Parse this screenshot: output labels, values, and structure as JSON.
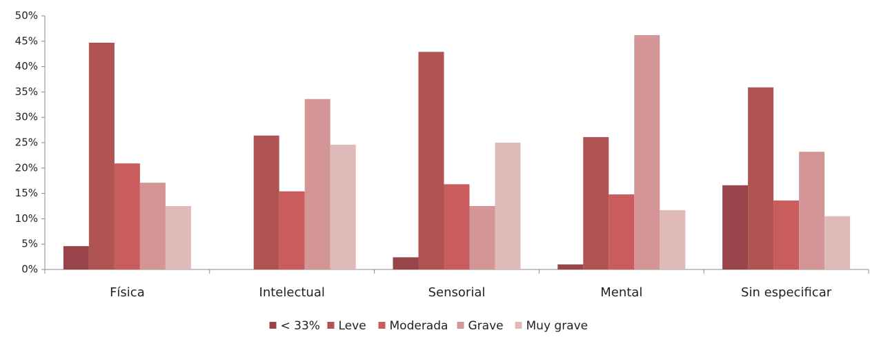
{
  "chart_data": {
    "type": "bar",
    "categories": [
      "Física",
      "Intelectual",
      "Sensorial",
      "Mental",
      "Sin especificar"
    ],
    "series": [
      {
        "name": "< 33%",
        "color": "#97444a",
        "values": [
          4.6,
          0,
          2.4,
          1.0,
          16.6
        ]
      },
      {
        "name": "Leve",
        "color": "#b05353",
        "values": [
          44.7,
          26.4,
          42.9,
          26.1,
          35.9
        ]
      },
      {
        "name": "Moderada",
        "color": "#c95c5c",
        "values": [
          20.9,
          15.4,
          16.8,
          14.8,
          13.6
        ]
      },
      {
        "name": "Grave",
        "color": "#d39596",
        "values": [
          17.1,
          33.6,
          12.5,
          46.2,
          23.2
        ]
      },
      {
        "name": "Muy grave",
        "color": "#e0b9b9",
        "values": [
          12.5,
          24.6,
          25.0,
          11.7,
          10.5
        ]
      }
    ],
    "ylim": [
      0,
      50
    ],
    "yticks": [
      {
        "value": 0,
        "label": "0%"
      },
      {
        "value": 5,
        "label": "5%"
      },
      {
        "value": 10,
        "label": "10%"
      },
      {
        "value": 15,
        "label": "15%"
      },
      {
        "value": 20,
        "label": "20%"
      },
      {
        "value": 25,
        "label": "25%"
      },
      {
        "value": 30,
        "label": "30%"
      },
      {
        "value": 35,
        "label": "35%"
      },
      {
        "value": 40,
        "label": "40%"
      },
      {
        "value": 45,
        "label": "45%"
      },
      {
        "value": 50,
        "label": "50%"
      }
    ],
    "grid": false,
    "legend": "bottom"
  }
}
